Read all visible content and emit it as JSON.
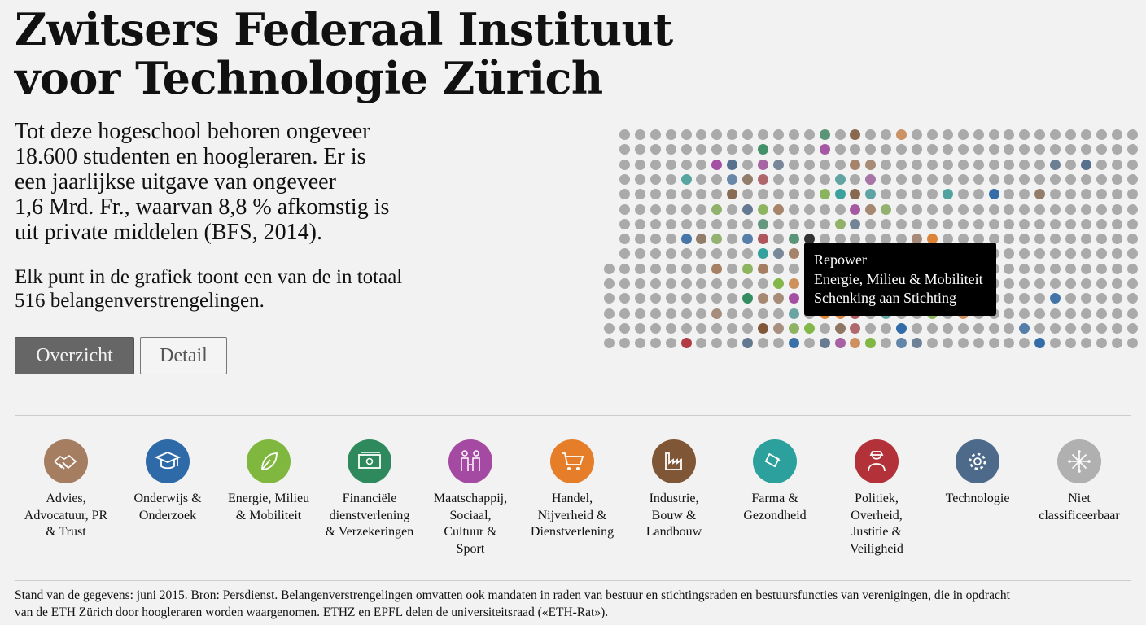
{
  "header": {
    "title": "Zwitsers Federaal Instituut voor Technologie Zürich"
  },
  "intro": {
    "lines": [
      "Tot deze hogeschool behoren ongeveer",
      "18.600 studenten en hoogleraren. Er is",
      "een jaarlijkse uitgave van ongeveer",
      "1,6 Mrd. Fr., waarvan 8,8 % afkomstig is",
      "uit private middelen (BFS, 2014)."
    ],
    "explain_lines": [
      "Elk punt in de grafiek toont een van de in totaal",
      "516 belangenverstrengelingen."
    ]
  },
  "view_toggle": {
    "overview_label": "Overzicht",
    "detail_label": "Detail",
    "active": "Overzicht"
  },
  "chart": {
    "total_points": 516,
    "neutral_color": "#aaaaaa",
    "tooltip": {
      "name": "Repower",
      "category": "Energie, Milieu & Mobiliteit",
      "type": "Schenking aan Stichting"
    }
  },
  "legend": [
    {
      "label": "Advies, Advocatuur, PR & Trust",
      "lines": [
        "Advies,",
        "Advocatuur, PR",
        "& Trust"
      ],
      "color": "#a57e62",
      "icon": "handshake-icon"
    },
    {
      "label": "Onderwijs & Onderzoek",
      "lines": [
        "Onderwijs &",
        "Onderzoek"
      ],
      "color": "#2f6aa8",
      "icon": "graduation-cap-icon"
    },
    {
      "label": "Energie, Milieu & Mobiliteit",
      "lines": [
        "Energie, Milieu",
        "& Mobiliteit"
      ],
      "color": "#80b83f",
      "icon": "leaf-icon"
    },
    {
      "label": "Financiële dienstverlening & Verzekeringen",
      "lines": [
        "Financiële",
        "dienstverlening",
        "& Verzekeringen"
      ],
      "color": "#2e8a5c",
      "icon": "banknote-icon"
    },
    {
      "label": "Maatschappij, Sociaal, Cultuur & Sport",
      "lines": [
        "Maatschappij,",
        "Sociaal,",
        "Cultuur &",
        "Sport"
      ],
      "color": "#a44aa2",
      "icon": "family-icon"
    },
    {
      "label": "Handel, Nijverheid & Dienstverlening",
      "lines": [
        "Handel,",
        "Nijverheid &",
        "Dienstverlening"
      ],
      "color": "#e67e29",
      "icon": "shopping-cart-icon"
    },
    {
      "label": "Industrie, Bouw & Landbouw",
      "lines": [
        "Industrie,",
        "Bouw &",
        "Landbouw"
      ],
      "color": "#7f5636",
      "icon": "factory-icon"
    },
    {
      "label": "Farma & Gezondheid",
      "lines": [
        "Farma &",
        "Gezondheid"
      ],
      "color": "#2ba09c",
      "icon": "pill-icon"
    },
    {
      "label": "Politiek, Overheid, Justitie & Veiligheid",
      "lines": [
        "Politiek,",
        "Overheid,",
        "Justitie &",
        "Veiligheid"
      ],
      "color": "#b3323a",
      "icon": "officer-icon"
    },
    {
      "label": "Technologie",
      "lines": [
        "Technologie"
      ],
      "color": "#4e6a8a",
      "icon": "gear-icon"
    },
    {
      "label": "Niet classificeerbaar",
      "lines": [
        "Niet",
        "classificeerbaar"
      ],
      "color": "#b0b0b0",
      "icon": "asterisk-network-icon"
    }
  ],
  "footer": {
    "lines": [
      "Stand van de gegevens: juni 2015. Bron: Persdienst. Belangenverstrengelingen omvatten ook mandaten in raden van bestuur en stichtingsraden en bestuursfuncties van verenigingen, die in opdracht",
      "van de ETH Zürich door hoogleraren worden waargenomen. ETHZ en EPFL delen de universiteitsraad («ETH-Rat»)."
    ]
  }
}
